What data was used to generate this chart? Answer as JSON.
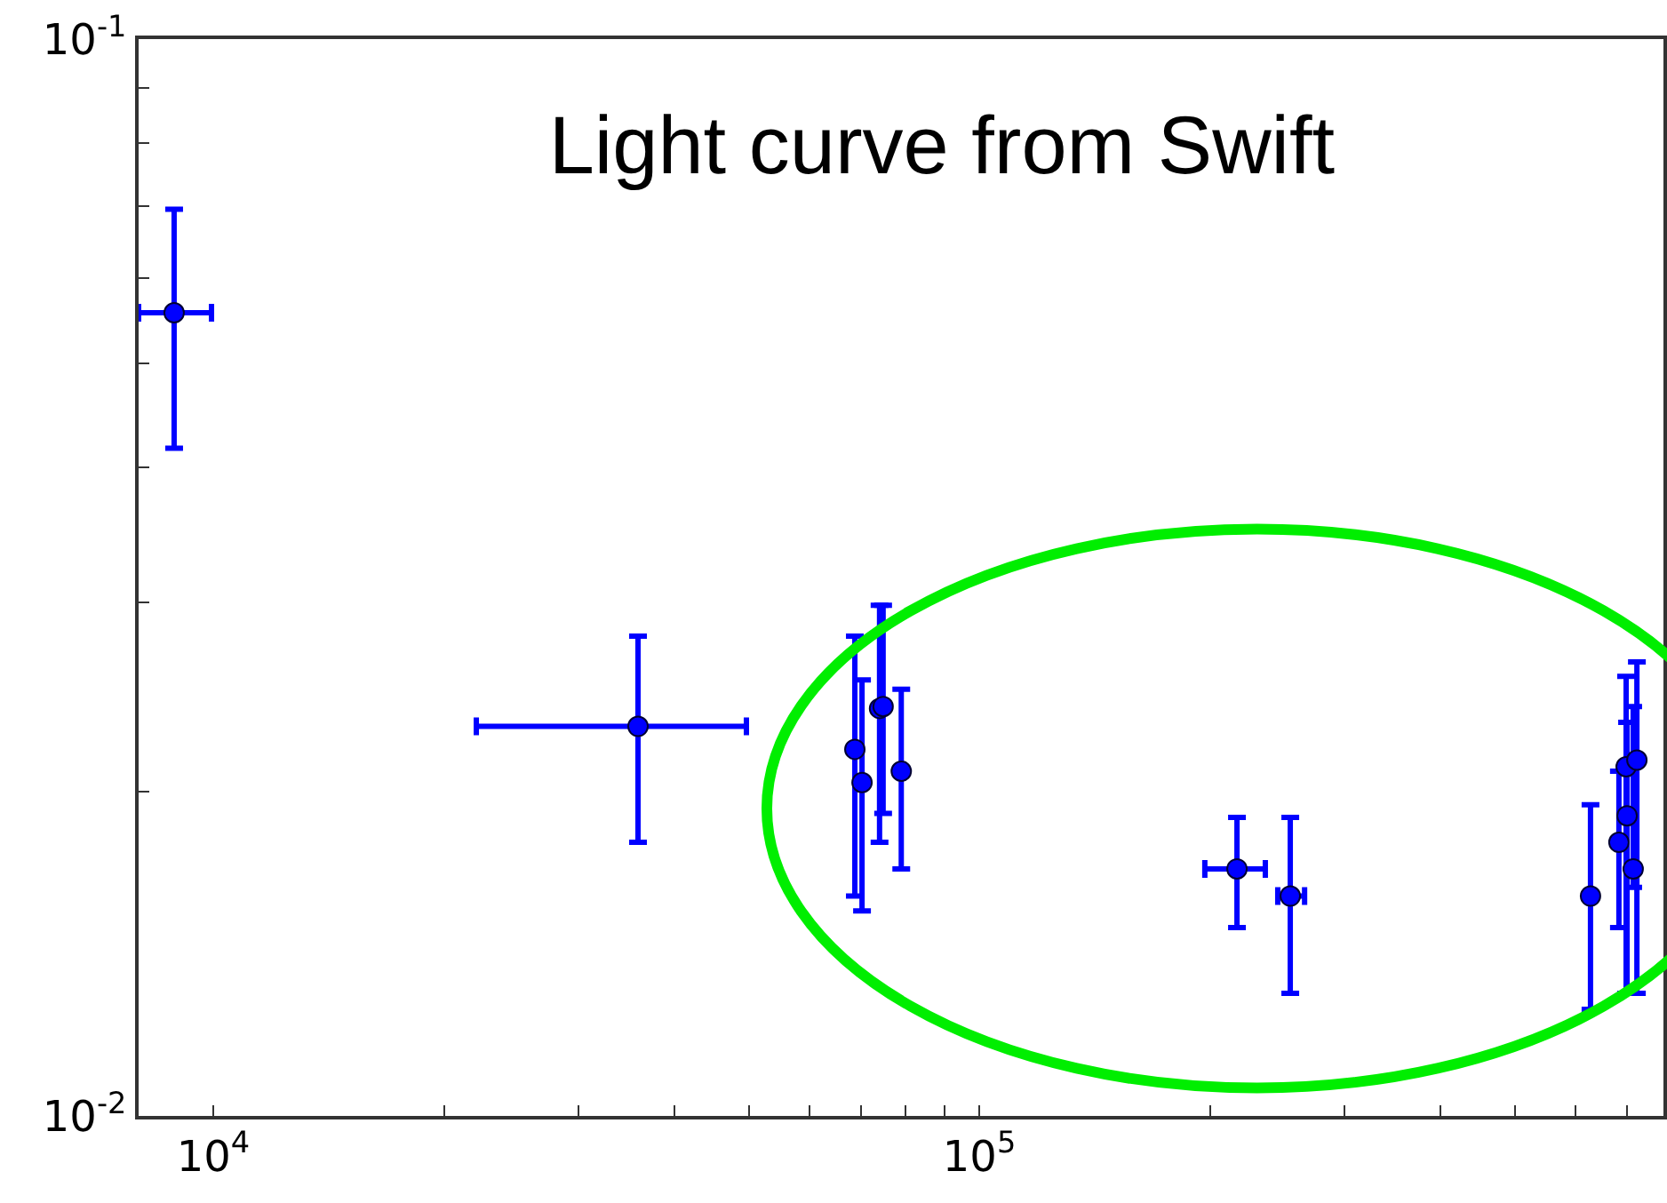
{
  "chart_data": {
    "type": "scatter",
    "title": "Light curve from Swift",
    "marker": "circle",
    "legend": false,
    "x": [
      8890,
      35850,
      68800,
      70300,
      74100,
      74900,
      79100,
      217000,
      254700,
      628000,
      684000,
      699000,
      701000,
      722000,
      714000
    ],
    "values": [
      0.0557,
      0.023,
      0.0219,
      0.0204,
      0.0239,
      0.024,
      0.0209,
      0.01696,
      0.016,
      0.016,
      0.01795,
      0.0211,
      0.019,
      0.0214,
      0.01696
    ],
    "errors": [
      [
        0.0417,
        0.0695
      ],
      [
        0.01795,
        0.0279
      ],
      [
        0.016,
        0.0279
      ],
      [
        0.0155,
        0.0254
      ],
      [
        0.01795,
        0.0298
      ],
      [
        0.0191,
        0.0298
      ],
      [
        0.01696,
        0.0249
      ],
      [
        0.01496,
        0.01893
      ],
      [
        0.013,
        0.01893
      ],
      [
        0.01256,
        0.01945
      ],
      [
        0.01496,
        0.0209
      ],
      [
        0.013,
        0.0256
      ],
      [
        0.013,
        0.0232
      ],
      [
        0.013,
        0.0264
      ],
      [
        0.0163,
        0.024
      ]
    ],
    "xerrors": [
      [
        7990,
        9947
      ],
      [
        22050,
        49660
      ],
      null,
      null,
      null,
      null,
      null,
      [
        197000,
        236300
      ],
      [
        245300,
        265900
      ],
      null,
      null,
      null,
      null,
      null,
      null
    ],
    "color": "#0000ff",
    "log": "xy",
    "xlim": [
      7990,
      782000
    ],
    "ylim": [
      0.01,
      0.1
    ],
    "xticks": [
      {
        "value": 10000,
        "label": "10$^{4}$"
      },
      {
        "value": 20000,
        "label": null
      },
      {
        "value": 30000,
        "label": null
      },
      {
        "value": 40000,
        "label": null
      },
      {
        "value": 50000,
        "label": null
      },
      {
        "value": 60000,
        "label": null
      },
      {
        "value": 70000,
        "label": null
      },
      {
        "value": 80000,
        "label": null
      },
      {
        "value": 90000,
        "label": null
      },
      {
        "value": 100000,
        "label": "10$^{5}$"
      },
      {
        "value": 200000,
        "label": null
      },
      {
        "value": 300000,
        "label": null
      },
      {
        "value": 400000,
        "label": null
      },
      {
        "value": 500000,
        "label": null
      },
      {
        "value": 600000,
        "label": null
      },
      {
        "value": 700000,
        "label": null
      }
    ],
    "yticks": [
      {
        "value": 0.01,
        "label": "10$^{-2}$"
      },
      {
        "value": 0.02,
        "label": null
      },
      {
        "value": 0.03,
        "label": null
      },
      {
        "value": 0.04,
        "label": null
      },
      {
        "value": 0.05,
        "label": null
      },
      {
        "value": 0.06,
        "label": null
      },
      {
        "value": 0.07,
        "label": null
      },
      {
        "value": 0.08,
        "label": null
      },
      {
        "value": 0.09,
        "label": null
      },
      {
        "value": 0.1,
        "label": "10$^{-1}$"
      }
    ]
  }
}
